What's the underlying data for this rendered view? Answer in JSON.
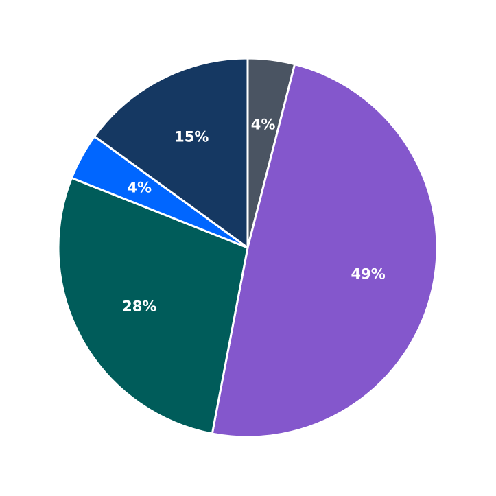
{
  "chart_data": {
    "type": "pie",
    "values": [
      4,
      49,
      28,
      4,
      15
    ],
    "value_labels": [
      "4%",
      "49%",
      "28%",
      "4%",
      "15%"
    ],
    "colors": [
      "#4a5462",
      "#8457cc",
      "#005c5a",
      "#0066ff",
      "#153862"
    ],
    "start_angle": 0,
    "direction": "clockwise"
  }
}
